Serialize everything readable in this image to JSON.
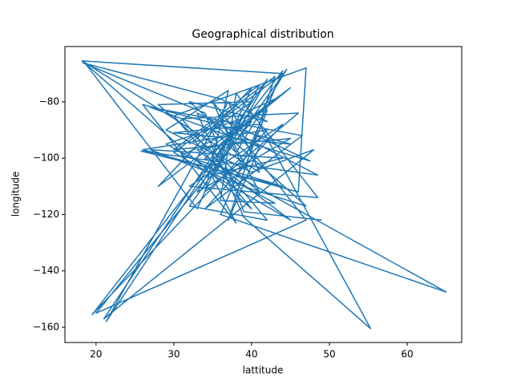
{
  "chart_data": {
    "type": "line",
    "title": "Geographical distribution",
    "x_label": "lattitude",
    "y_label": "longitude",
    "xlim": [
      16.0,
      67.0
    ],
    "ylim": [
      -165.4,
      -60.4
    ],
    "xticks": [
      20,
      30,
      40,
      50,
      60
    ],
    "yticks": [
      {
        "value": -80,
        "label": "−80"
      },
      {
        "value": -100,
        "label": "−100"
      },
      {
        "value": -120,
        "label": "−120"
      },
      {
        "value": -140,
        "label": "−140"
      },
      {
        "value": -160,
        "label": "−160"
      }
    ],
    "grid": false,
    "series": [
      {
        "color": "#1f77b4",
        "x": [
          32,
          44,
          18.2,
          40,
          30,
          47,
          46,
          26,
          42,
          19.5,
          44,
          36,
          65,
          34,
          45,
          28,
          40,
          33,
          18.5,
          41,
          37,
          21.3,
          42,
          35,
          38,
          26,
          45,
          30,
          41,
          55.3,
          39,
          33,
          48.5,
          25.8,
          44,
          31,
          40,
          20,
          47,
          35,
          39,
          42,
          29,
          43,
          36,
          38,
          48.5,
          32,
          44,
          34,
          46.5,
          27,
          41,
          37,
          43,
          30,
          45,
          33,
          39,
          47.5,
          36,
          41,
          28,
          40,
          35,
          38,
          44.5,
          32,
          42,
          31,
          46,
          34,
          37,
          29,
          40,
          48,
          21,
          36,
          43,
          39,
          33,
          45,
          30,
          41,
          38,
          35,
          44,
          27,
          40,
          47,
          32,
          42,
          36,
          18.3,
          34,
          39,
          49
        ],
        "values": [
          -95,
          -70,
          -65.5,
          -118,
          -85,
          -68,
          -112,
          -97,
          -90,
          -155.5,
          -69,
          -120,
          -147.5,
          -100,
          -75,
          -110,
          -75,
          -118,
          -66,
          -105,
          -80,
          -158,
          -72,
          -107,
          -123,
          -81,
          -95,
          -91,
          -88,
          -160.5,
          -121,
          -84,
          -106,
          -97.5,
          -110,
          -99,
          -87,
          -155,
          -122,
          -80,
          -104,
          -83,
          -95,
          -116,
          -115,
          -77,
          -114,
          -110,
          -88,
          -118,
          -92,
          -82,
          -96,
          -122,
          -71,
          -98,
          -122,
          -97,
          -94,
          -101,
          -86,
          -112,
          -81,
          -80,
          -90,
          -98,
          -68.5,
          -117,
          -122,
          -86,
          -84,
          -112,
          -76,
          -90,
          -105,
          -97,
          -157,
          -95,
          -79,
          -84,
          -112,
          -93,
          -97,
          -74,
          -90,
          -106,
          -100,
          -97,
          -111,
          -117,
          -80,
          -87,
          -79,
          -66.2,
          -84,
          -119,
          -122
        ]
      }
    ]
  }
}
